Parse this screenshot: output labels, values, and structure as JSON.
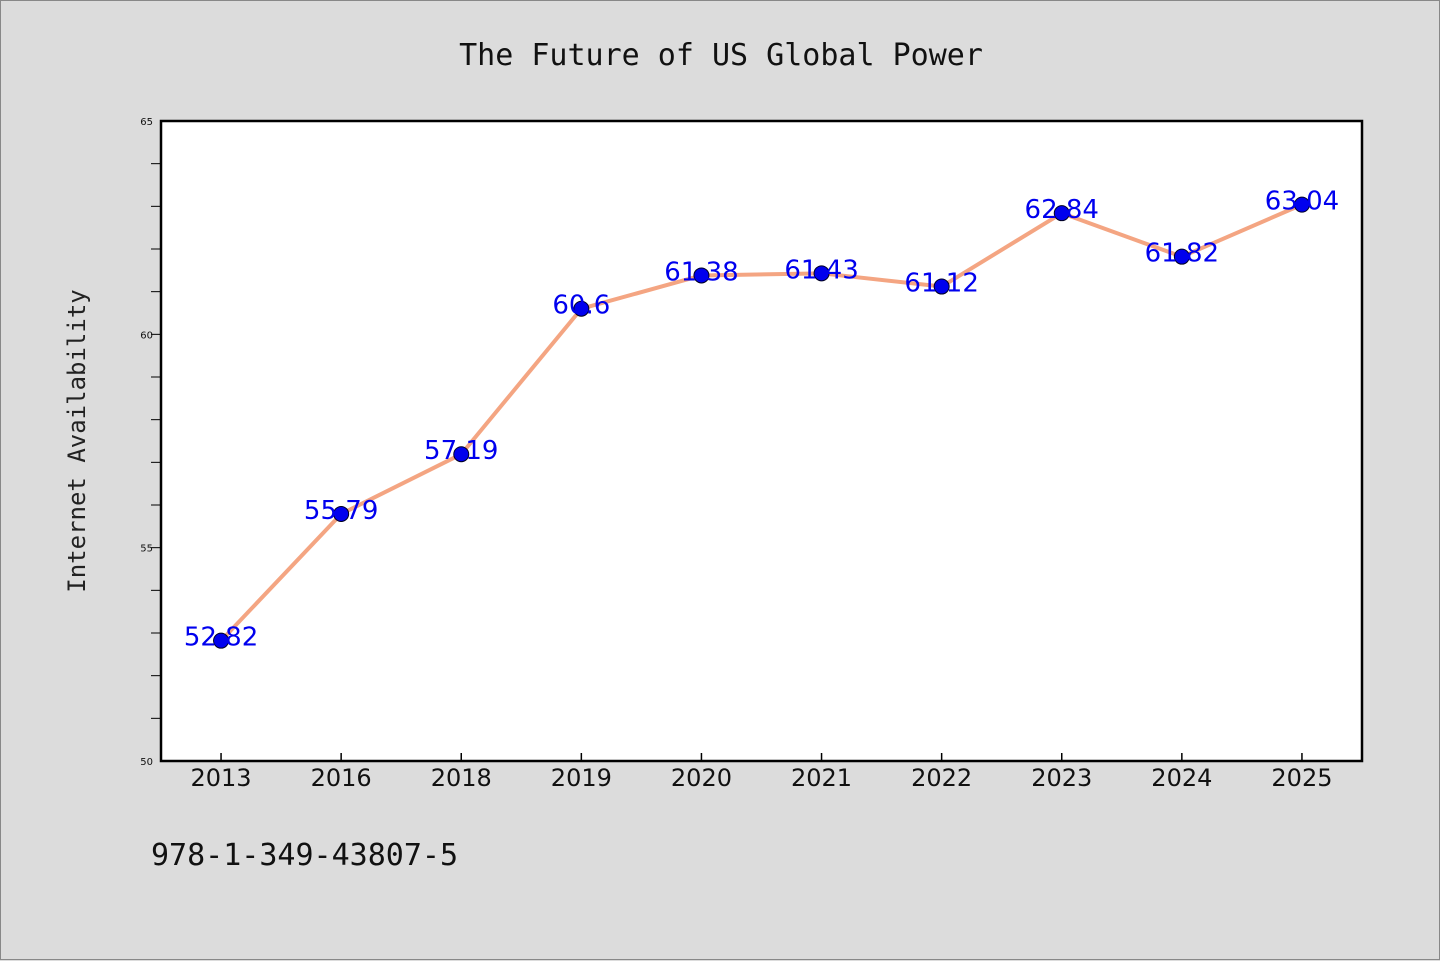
{
  "chart_data": {
    "type": "line",
    "title": "The Future of US Global Power",
    "xlabel": "",
    "ylabel": "Internet Availability",
    "categories": [
      "2013",
      "2016",
      "2018",
      "2019",
      "2020",
      "2021",
      "2022",
      "2023",
      "2024",
      "2025"
    ],
    "series": [
      {
        "values": [
          52.82,
          55.79,
          57.19,
          60.6,
          61.38,
          61.43,
          61.12,
          62.84,
          61.82,
          63.04
        ],
        "labels": [
          "52.82",
          "55.79",
          "57.19",
          "60.6",
          "61.38",
          "61.43",
          "61.12",
          "62.84",
          "61.82",
          "63.04"
        ],
        "line_color": "#f4a582",
        "marker_color": "#0000ee"
      }
    ],
    "ylim": [
      50,
      65
    ],
    "yticks": [
      "50",
      "55",
      "60",
      "65"
    ],
    "grid": false,
    "legend": "none",
    "label_color": "#0000ee"
  },
  "footer": {
    "isbn": "978-1-349-43807-5"
  }
}
